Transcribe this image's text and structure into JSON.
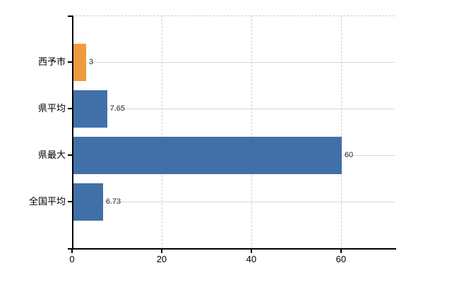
{
  "chart_data": {
    "type": "bar",
    "orientation": "horizontal",
    "title": "",
    "categories": [
      "西予市",
      "県平均",
      "県最大",
      "全国平均"
    ],
    "values": [
      3,
      7.65,
      60,
      6.73
    ],
    "data_labels": [
      "3",
      "7.65",
      "60",
      "6.73"
    ],
    "bar_colors": [
      "#EE9B40",
      "#4170A8",
      "#4170A8",
      "#4170A8"
    ],
    "x_ticks": [
      0,
      20,
      40,
      60
    ],
    "x_tick_labels": [
      "0",
      "20",
      "40",
      "60"
    ],
    "xlim": [
      0,
      72
    ],
    "xlabel": "",
    "ylabel": "",
    "grid": true,
    "legend": false
  },
  "colors": {
    "background": "#FFFFFF",
    "axis": "#000000",
    "gridline_horizontal": "#D5DBD5",
    "gridline_vertical": "#CFCBD6",
    "plot_border_dashed": "#CCC8D2",
    "category_text": "#000000",
    "value_text": "#2A2A2A"
  }
}
